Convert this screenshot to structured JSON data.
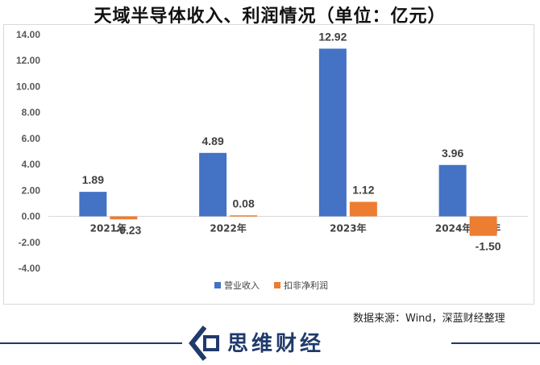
{
  "chart_data": {
    "type": "bar",
    "title": "天域半导体收入、利润情况（单位：亿元）",
    "categories": [
      "2021年",
      "2022年",
      "2023年",
      "2024年上半年"
    ],
    "series": [
      {
        "name": "营业收入",
        "values": [
          1.89,
          4.89,
          12.92,
          3.96
        ],
        "color": "#4472c4"
      },
      {
        "name": "扣非净利润",
        "values": [
          -0.23,
          0.08,
          1.12,
          -1.5
        ],
        "color": "#ed7d31"
      }
    ],
    "value_labels": [
      [
        "1.89",
        "4.89",
        "12.92",
        "3.96"
      ],
      [
        "-0.23",
        "0.08",
        "1.12",
        "-1.50"
      ]
    ],
    "ylim": [
      -4,
      14
    ],
    "yticks": [
      "14.00",
      "12.00",
      "10.00",
      "8.00",
      "6.00",
      "4.00",
      "2.00",
      "0.00",
      "-2.00",
      "-4.00"
    ],
    "grid": false,
    "legend_position": "bottom"
  },
  "source": "数据来源：Wind，深蓝财经整理",
  "brand": {
    "name": "思维财经",
    "logo_icon": "chevron-house-icon"
  }
}
